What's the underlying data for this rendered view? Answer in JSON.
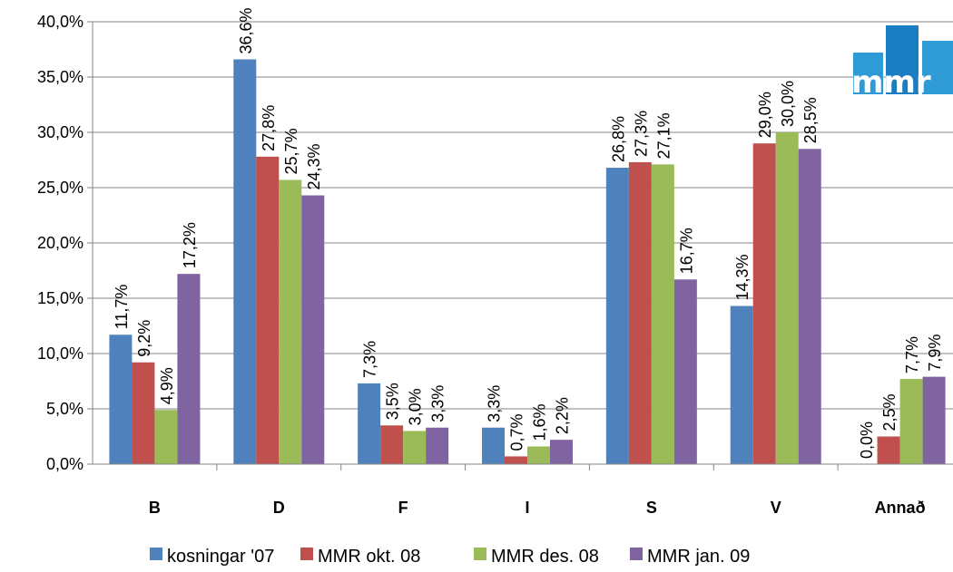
{
  "chart_data": {
    "type": "bar",
    "categories": [
      "B",
      "D",
      "F",
      "I",
      "S",
      "V",
      "Annað"
    ],
    "series": [
      {
        "name": "kosningar '07",
        "color": "#4F81BD",
        "values": [
          11.7,
          36.6,
          7.3,
          3.3,
          26.8,
          14.3,
          0.0
        ],
        "labels": [
          "11,7%",
          "36,6%",
          "7,3%",
          "3,3%",
          "26,8%",
          "14,3%",
          "0,0%"
        ]
      },
      {
        "name": "MMR okt. 08",
        "color": "#C0504D",
        "values": [
          9.2,
          27.8,
          3.5,
          0.7,
          27.3,
          29.0,
          2.5
        ],
        "labels": [
          "9,2%",
          "27,8%",
          "3,5%",
          "0,7%",
          "27,3%",
          "29,0%",
          "2,5%"
        ]
      },
      {
        "name": "MMR des. 08",
        "color": "#9BBB59",
        "values": [
          4.9,
          25.7,
          3.0,
          1.6,
          27.1,
          30.0,
          7.7
        ],
        "labels": [
          "4,9%",
          "25,7%",
          "3,0%",
          "1,6%",
          "27,1%",
          "30,0%",
          "7,7%"
        ]
      },
      {
        "name": "MMR jan. 09",
        "color": "#8064A2",
        "values": [
          17.2,
          24.3,
          3.3,
          2.2,
          16.7,
          28.5,
          7.9
        ],
        "labels": [
          "17,2%",
          "24,3%",
          "3,3%",
          "2,2%",
          "16,7%",
          "28,5%",
          "7,9%"
        ]
      }
    ],
    "yticks": [
      "0,0%",
      "5,0%",
      "10,0%",
      "15,0%",
      "20,0%",
      "25,0%",
      "30,0%",
      "35,0%",
      "40,0%"
    ],
    "ylim": [
      0,
      40
    ],
    "grid": true,
    "legend": "bottom"
  },
  "logo": {
    "text": "mmr",
    "colors": [
      "#2E9BD6",
      "#1B7DC2"
    ]
  }
}
